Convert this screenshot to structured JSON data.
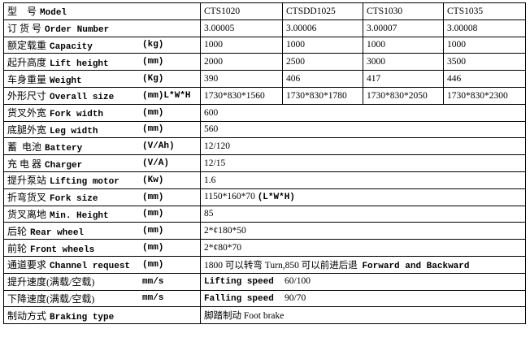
{
  "table": {
    "rows": [
      {
        "label": {
          "cn": "型    号",
          "en": "Model"
        },
        "cells": [
          "CTS1020",
          "CTSDD1025",
          "CTS1030",
          "CTS1035"
        ]
      },
      {
        "label": {
          "cn": "订 货 号",
          "en": "Order Number"
        },
        "cells": [
          "3.00005",
          "3.00006",
          "3.00007",
          "3.00008"
        ]
      },
      {
        "label": {
          "cn": "额定载重",
          "en": "Capacity",
          "unit": "(kg)"
        },
        "cells": [
          "1000",
          "1000",
          "1000",
          "1000"
        ]
      },
      {
        "label": {
          "cn": "起升高度",
          "en": "Lift height",
          "unit": "(mm)"
        },
        "cells": [
          "2000",
          "2500",
          "3000",
          "3500"
        ]
      },
      {
        "label": {
          "cn": "车身重量",
          "en": "Weight",
          "unit": "(Kg)"
        },
        "cells": [
          "390",
          "406",
          "417",
          "446"
        ]
      },
      {
        "label": {
          "cn": "外形尺寸",
          "en": "Overall size",
          "unit": "(mm)L*W*H"
        },
        "cells": [
          "1730*830*1560",
          "1730*830*1780",
          "1730*830*2050",
          "1730*830*2300"
        ]
      },
      {
        "label": {
          "cn": "货叉外宽",
          "en": "Fork width",
          "unit": "(mm)"
        },
        "cells": [
          "600"
        ]
      },
      {
        "label": {
          "cn": "底腿外宽",
          "en": "Leg width",
          "unit": "(mm)"
        },
        "cells": [
          "560"
        ]
      },
      {
        "label": {
          "cn": "蓄  电池",
          "en": "Battery",
          "unit": "(V/Ah)"
        },
        "cells": [
          "12/120"
        ]
      },
      {
        "label": {
          "cn": "充 电 器",
          "en": "Charger",
          "unit": "(V/A)"
        },
        "cells": [
          "12/15"
        ]
      },
      {
        "label": {
          "cn": "提升泵站",
          "en": "Lifting motor",
          "unit": "(Kw)"
        },
        "cells": [
          "1.6"
        ]
      },
      {
        "label": {
          "cn": "折弯货叉",
          "en": "Fork size",
          "unit": "(mm)"
        },
        "cells": [
          [
            {
              "text": "1150*160*70 "
            },
            {
              "text": "(L*W*H)",
              "bold": true
            }
          ]
        ]
      },
      {
        "label": {
          "cn": "货叉离地",
          "en": "Min. Height",
          "unit": "(mm)"
        },
        "cells": [
          "85"
        ]
      },
      {
        "label": {
          "cn": "后轮",
          "en": "Rear wheel",
          "unit": "(mm)"
        },
        "cells": [
          "2*¢180*50"
        ]
      },
      {
        "label": {
          "cn": "前轮",
          "en": "Front wheels",
          "unit": "(mm)"
        },
        "cells": [
          "2*¢80*70"
        ]
      },
      {
        "label": {
          "cn": "通道要求",
          "en": "Channel request",
          "unit": "(mm)"
        },
        "cells": [
          [
            {
              "text": "1800 可以转弯 Turn,850 可以前进后退  "
            },
            {
              "text": "Forward and Backward",
              "bold": true
            }
          ]
        ]
      },
      {
        "label": {
          "cn": "提升速度(满载/空载)",
          "unit": "mm/s"
        },
        "cells": [
          [
            {
              "text": "Lifting speed  ",
              "bold": true
            },
            {
              "text": "60/100"
            }
          ]
        ]
      },
      {
        "label": {
          "cn": "下降速度(满载/空载)",
          "unit": "mm/s"
        },
        "cells": [
          [
            {
              "text": "Falling speed  ",
              "bold": true
            },
            {
              "text": "90/70"
            }
          ]
        ]
      },
      {
        "label": {
          "cn": "制动方式",
          "en": "Braking type"
        },
        "cells": [
          "脚踏制动 Foot brake"
        ]
      }
    ]
  }
}
